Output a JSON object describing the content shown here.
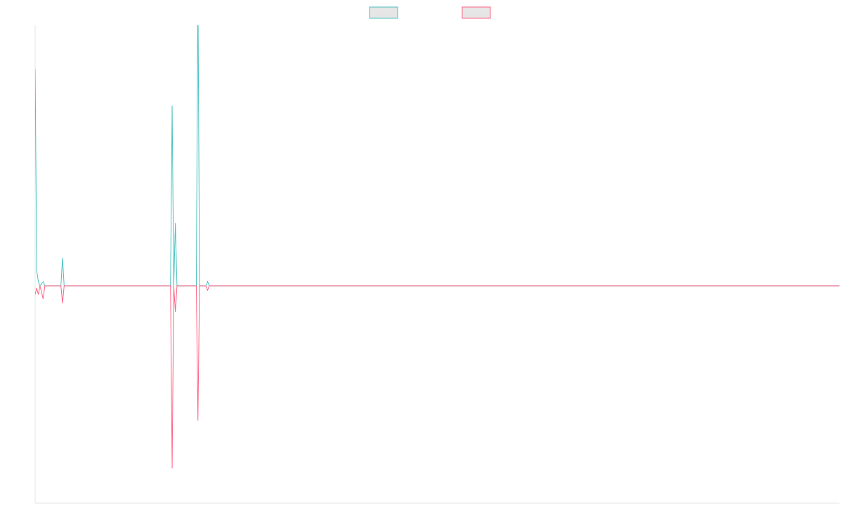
{
  "chart_data": {
    "type": "line",
    "title": "",
    "xlabel": "",
    "ylabel": "",
    "x_count": 500,
    "ylim": [
      -100,
      120
    ],
    "grid": false,
    "legend_position": "top-center",
    "series": [
      {
        "name": "",
        "color": "#4bc0c0",
        "fill": "#e6e6e6",
        "points": [
          [
            0,
            100
          ],
          [
            1,
            7
          ],
          [
            2,
            2
          ],
          [
            3,
            0
          ],
          [
            5,
            2
          ],
          [
            6,
            0
          ],
          [
            16,
            0
          ],
          [
            17,
            13
          ],
          [
            18,
            0
          ],
          [
            84,
            0
          ],
          [
            85,
            83
          ],
          [
            86,
            0
          ],
          [
            87,
            29
          ],
          [
            88,
            0
          ],
          [
            100,
            0
          ],
          [
            101,
            140
          ],
          [
            102,
            0
          ],
          [
            106,
            0
          ],
          [
            107,
            2
          ],
          [
            108,
            0
          ],
          [
            499,
            0
          ]
        ]
      },
      {
        "name": "",
        "color": "#ff6384",
        "fill": "#e6e6e6",
        "points": [
          [
            0,
            -4
          ],
          [
            1,
            -1
          ],
          [
            2,
            -4
          ],
          [
            3,
            0
          ],
          [
            5,
            -6
          ],
          [
            6,
            0
          ],
          [
            16,
            0
          ],
          [
            17,
            -8
          ],
          [
            18,
            0
          ],
          [
            84,
            0
          ],
          [
            85,
            -84
          ],
          [
            86,
            0
          ],
          [
            87,
            -12
          ],
          [
            88,
            0
          ],
          [
            100,
            0
          ],
          [
            101,
            -62
          ],
          [
            102,
            0
          ],
          [
            106,
            0
          ],
          [
            107,
            -2
          ],
          [
            108,
            0
          ],
          [
            499,
            0
          ]
        ]
      }
    ]
  }
}
